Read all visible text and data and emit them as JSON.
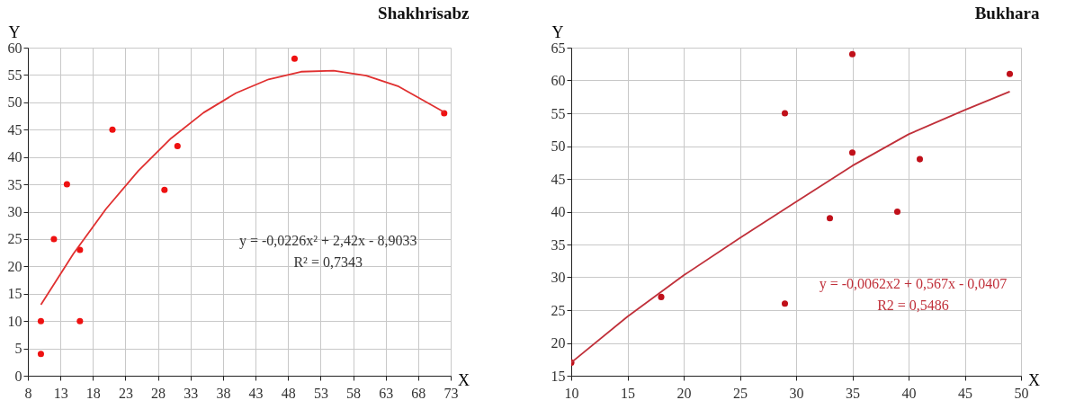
{
  "chart_data": [
    {
      "type": "scatter",
      "title": "Shakhrisabz",
      "xlabel": "X",
      "ylabel": "Y",
      "xlim": [
        8,
        73
      ],
      "xticks": [
        8,
        13,
        18,
        23,
        28,
        33,
        38,
        43,
        48,
        53,
        58,
        63,
        68,
        73
      ],
      "ylim": [
        0,
        60
      ],
      "yticks": [
        0,
        5,
        10,
        15,
        20,
        25,
        30,
        35,
        40,
        45,
        50,
        55,
        60
      ],
      "grid": true,
      "annotations": [
        "y = -0,0226x² + 2,42x - 8,9033",
        "R² = 0,7343"
      ],
      "series": [
        {
          "color": "#ee1111",
          "marker": "circle",
          "x": [
            10,
            10,
            12,
            14,
            16,
            16,
            21,
            29,
            31,
            49,
            72
          ],
          "values": [
            4,
            10,
            25,
            35,
            23,
            10,
            45,
            34,
            42,
            58,
            48
          ]
        },
        {
          "type": "line",
          "marker": "none",
          "color": "#e03030",
          "line_style": "solid",
          "x": [
            10,
            15,
            20,
            25,
            30,
            35,
            40,
            45,
            50,
            55,
            60,
            65,
            72
          ],
          "values": [
            13.0,
            22.3,
            30.5,
            37.5,
            43.4,
            48.1,
            51.7,
            54.2,
            55.6,
            55.8,
            54.9,
            52.9,
            48.2
          ]
        }
      ]
    },
    {
      "type": "scatter",
      "title": "Bukhara",
      "xlabel": "X",
      "ylabel": "Y",
      "xlim": [
        10,
        50
      ],
      "xticks": [
        10,
        15,
        20,
        25,
        30,
        35,
        40,
        45,
        50
      ],
      "ylim": [
        15,
        65
      ],
      "yticks": [
        15,
        20,
        25,
        30,
        35,
        40,
        45,
        50,
        55,
        60,
        65
      ],
      "grid": true,
      "annotations": [
        "y = -0,0062x2  + 0,567x  - 0,0407",
        "R2 = 0,5486"
      ],
      "series": [
        {
          "color": "#c0101a",
          "marker": "circle",
          "x": [
            10,
            18,
            29,
            29,
            33,
            35,
            35,
            39,
            41,
            49
          ],
          "values": [
            17,
            27,
            55,
            26,
            39,
            64,
            49,
            40,
            48,
            61
          ]
        },
        {
          "type": "line",
          "marker": "none",
          "color": "#c0303a",
          "line_style": "solid",
          "x": [
            10,
            15,
            20,
            25,
            30,
            35,
            40,
            45,
            49
          ],
          "values": [
            17,
            24,
            30.3,
            36,
            41.5,
            47,
            51.8,
            55.5,
            58.3
          ]
        }
      ]
    }
  ]
}
